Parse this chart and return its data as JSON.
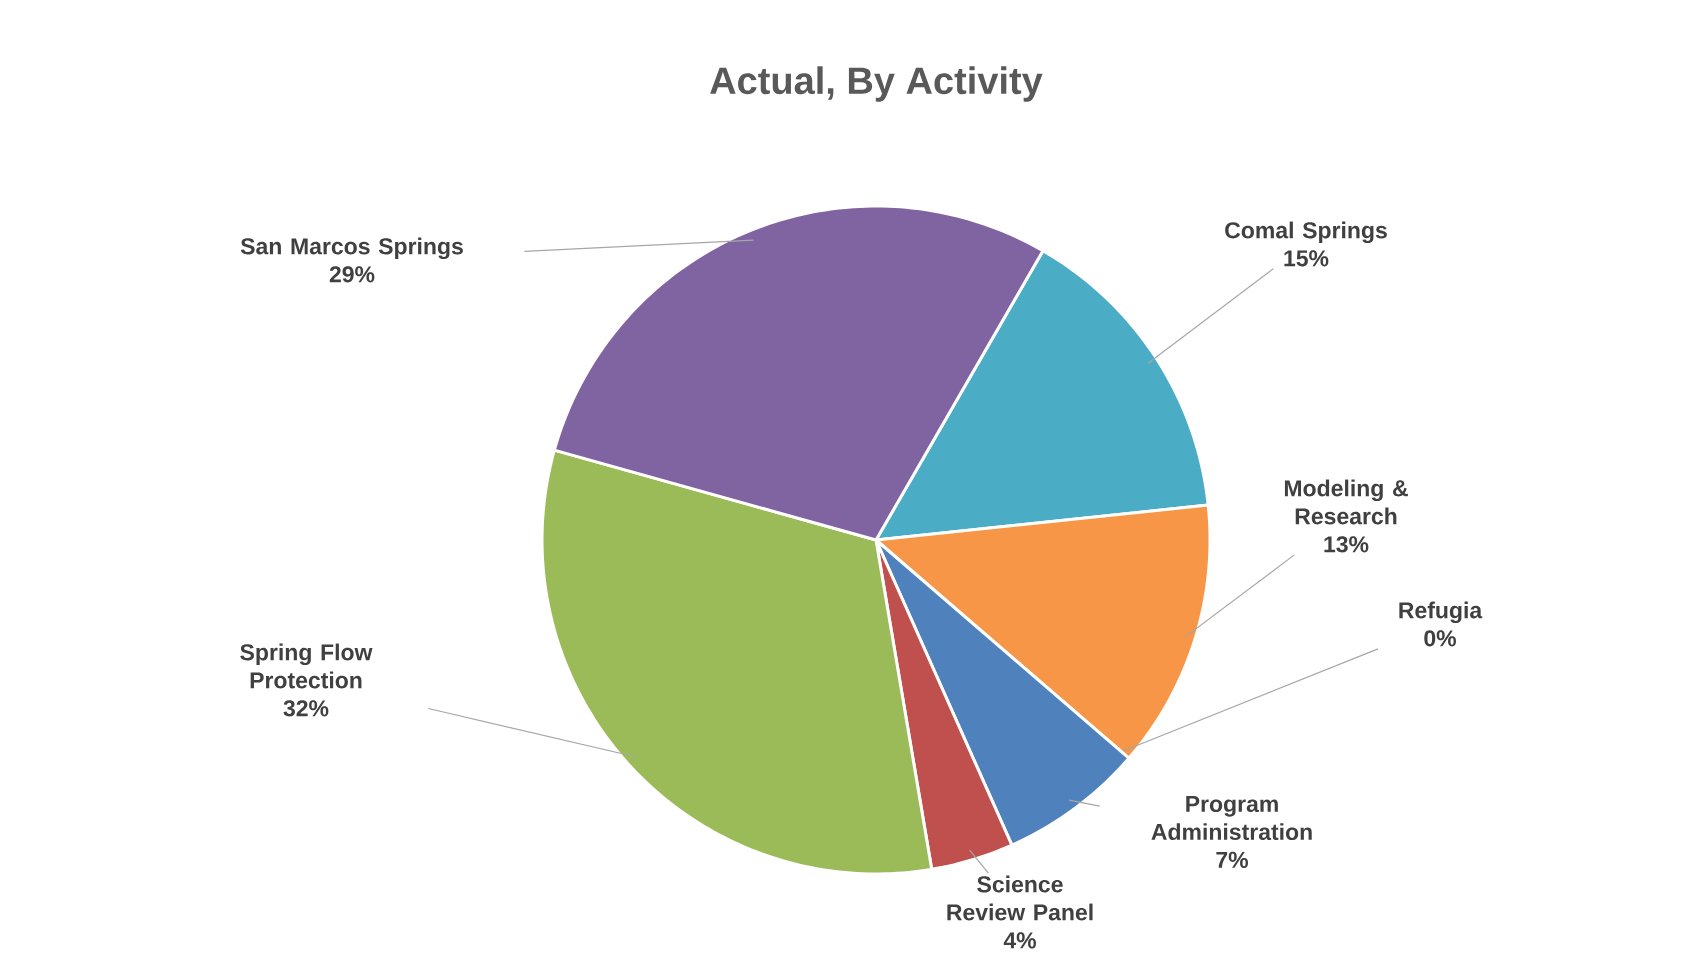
{
  "chart_data": {
    "type": "pie",
    "title": "Actual, By Activity",
    "categories": [
      "Comal Springs",
      "Modeling & Research",
      "Refugia",
      "Program Administration",
      "Science Review Panel",
      "Spring Flow Protection",
      "San Marcos Springs"
    ],
    "values": [
      15,
      13,
      0,
      7,
      4,
      32,
      29
    ],
    "value_labels": [
      "15%",
      "13%",
      "0%",
      "7%",
      "4%",
      "32%",
      "29%"
    ],
    "colors": [
      "#4bacc6",
      "#f79646",
      "#2c4d75",
      "#4f81bd",
      "#c0504d",
      "#9bbb59",
      "#8064a2"
    ]
  }
}
